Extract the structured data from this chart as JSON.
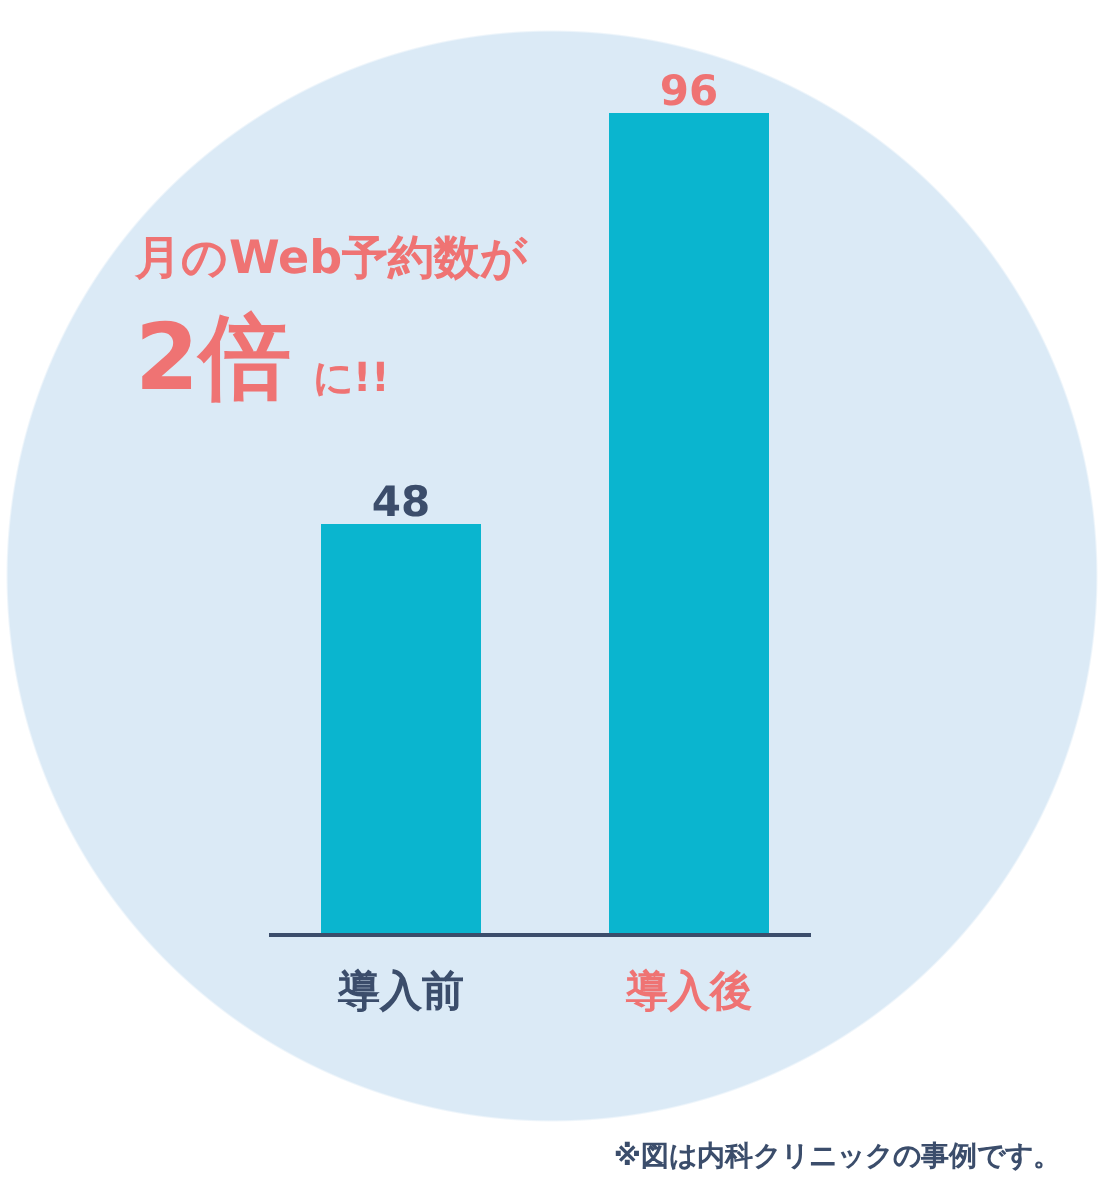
{
  "chart_data": {
    "type": "bar",
    "categories": [
      "導入前",
      "導入後"
    ],
    "values": [
      48,
      96
    ],
    "color": "#0ab5cf",
    "data_labels": true,
    "annotations": [
      "月のWeb予約数が",
      "2倍",
      "に!!",
      "※図は内科クリニックの事例です。"
    ]
  }
}
